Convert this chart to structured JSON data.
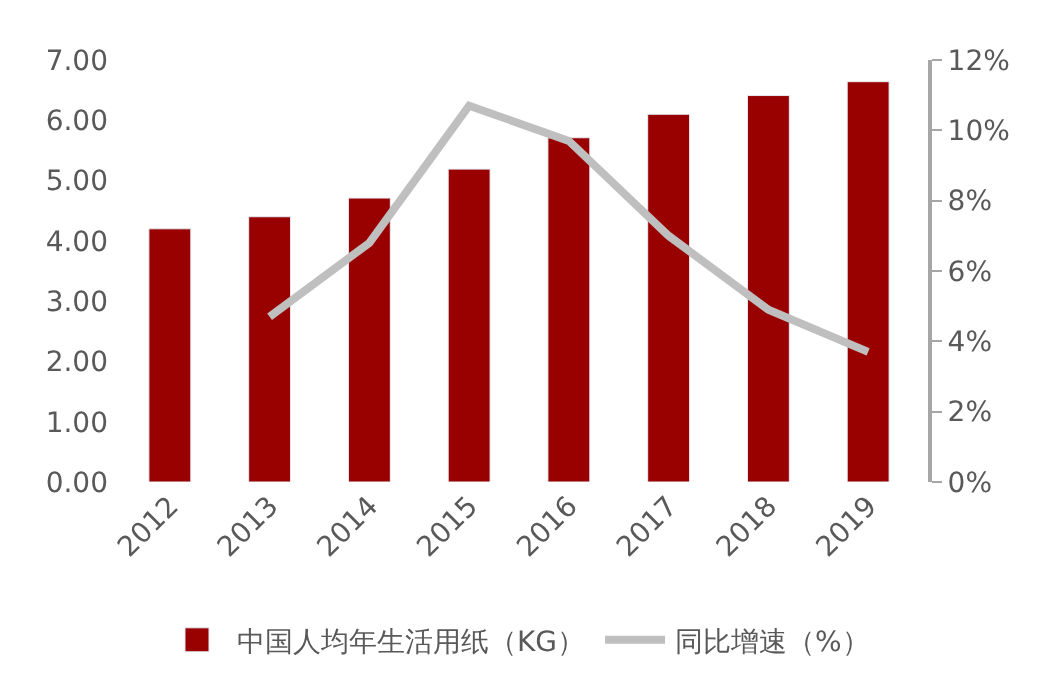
{
  "chart_data": {
    "type": "bar",
    "categories": [
      "2012",
      "2013",
      "2014",
      "2015",
      "2016",
      "2017",
      "2018",
      "2019"
    ],
    "series": [
      {
        "name": "中国人均年生活用纸（KG）",
        "color": "#990000",
        "values": [
          4.2,
          4.4,
          4.71,
          5.19,
          5.71,
          6.1,
          6.41,
          6.64
        ]
      },
      {
        "name": "同比增速（%）",
        "type": "line",
        "axis": "y2",
        "color": "#bfbfbf",
        "marker": "none",
        "line_style": "solid",
        "values": [
          null,
          4.7,
          6.8,
          10.7,
          9.7,
          7.0,
          4.9,
          3.7
        ]
      }
    ],
    "ylim": [
      0,
      7
    ],
    "yticks": [
      {
        "value": 0,
        "label": "0.00"
      },
      {
        "value": 1,
        "label": "1.00"
      },
      {
        "value": 2,
        "label": "2.00"
      },
      {
        "value": 3,
        "label": "3.00"
      },
      {
        "value": 4,
        "label": "4.00"
      },
      {
        "value": 5,
        "label": "5.00"
      },
      {
        "value": 6,
        "label": "6.00"
      },
      {
        "value": 7,
        "label": "7.00"
      }
    ],
    "y2lim": [
      0,
      12
    ],
    "y2ticks": [
      {
        "value": 0,
        "label": "0%"
      },
      {
        "value": 2,
        "label": "2%"
      },
      {
        "value": 4,
        "label": "4%"
      },
      {
        "value": 6,
        "label": "6%"
      },
      {
        "value": 8,
        "label": "8%"
      },
      {
        "value": 10,
        "label": "10%"
      },
      {
        "value": 12,
        "label": "12%"
      }
    ],
    "grid": false,
    "legend": "bottom"
  }
}
